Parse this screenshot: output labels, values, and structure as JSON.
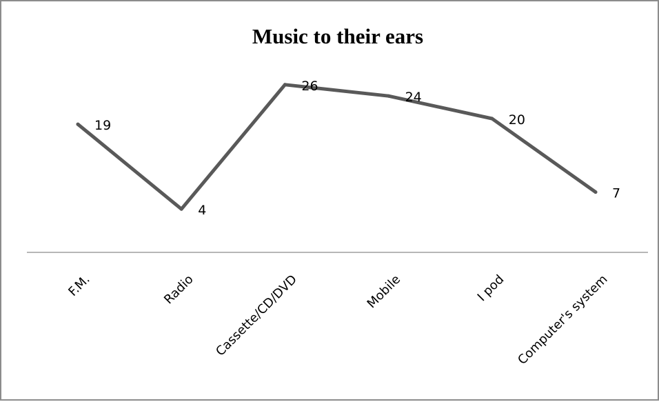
{
  "chart_data": {
    "type": "line",
    "title": "Music to their ears",
    "categories": [
      "F.M.",
      "Radio",
      "Cassette/CD/DVD",
      "Mobile",
      "I pod",
      "Computer's system"
    ],
    "series": [
      {
        "values": [
          19,
          4,
          26,
          24,
          20,
          7
        ]
      }
    ],
    "data_labels": [
      "19",
      "4",
      "26",
      "24",
      "20",
      "7"
    ],
    "xlabel": "",
    "ylabel": "",
    "ylim": [
      0,
      30
    ],
    "grid": false,
    "legend": "none",
    "colors": {
      "line": "#595959",
      "axis": "#8c8c8c",
      "frame": "#8c8c8c"
    }
  }
}
